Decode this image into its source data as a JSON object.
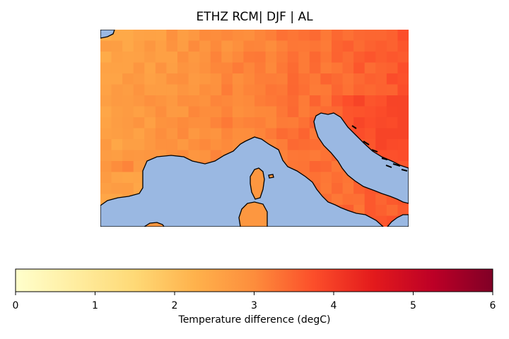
{
  "title": "ETHZ RCM| DJF | AL",
  "map": {
    "type": "heatmap",
    "colormap": "YlOrRd",
    "vmin": 0,
    "vmax": 6,
    "sea_color": "#9ab8e2",
    "coast_color": "#000000",
    "rows": 18,
    "cols": 28,
    "field_description_values": {
      "west_min": 2.5,
      "northeast_max": 3.9
    }
  },
  "colorbar": {
    "ticks": [
      "0",
      "1",
      "2",
      "3",
      "4",
      "5",
      "6"
    ],
    "label": "Temperature difference (degC)"
  }
}
